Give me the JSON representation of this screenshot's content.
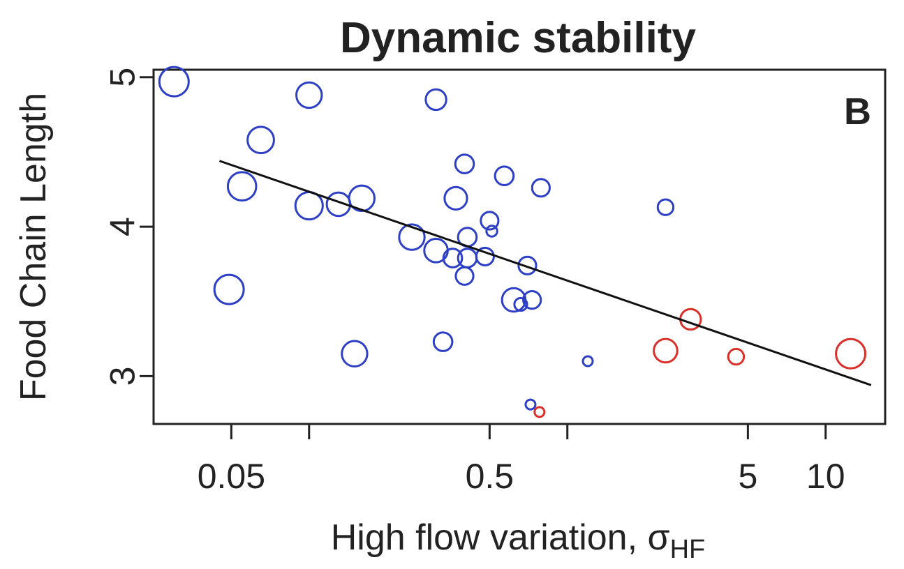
{
  "chart_data": {
    "type": "scatter",
    "title": "Dynamic stability",
    "panel_label": "B",
    "xlabel": "High flow variation, σ",
    "xlabel_subscript": "HF",
    "ylabel": "Food Chain Length",
    "x_scale": "log",
    "xlim": [
      0.025,
      17
    ],
    "ylim": [
      2.68,
      5.05
    ],
    "x_ticks": [
      0.05,
      0.1,
      0.5,
      1,
      5,
      10
    ],
    "x_tick_labels": [
      "0.05",
      "",
      "0.5",
      "",
      "5",
      "10"
    ],
    "y_ticks": [
      3,
      4,
      5
    ],
    "y_tick_labels": [
      "3",
      "4",
      "5"
    ],
    "grid": false,
    "legend": "none",
    "colors": {
      "blue": "#2d3fc4",
      "red": "#d9302a",
      "line": "#111111",
      "axis": "#222222"
    },
    "fit_line": {
      "x": [
        0.045,
        15
      ],
      "y": [
        4.44,
        2.94
      ]
    },
    "points": [
      {
        "x": 0.03,
        "y": 4.97,
        "size": 3,
        "group": "blue"
      },
      {
        "x": 0.055,
        "y": 4.27,
        "size": 2.9,
        "group": "blue"
      },
      {
        "x": 0.065,
        "y": 4.58,
        "size": 2.7,
        "group": "blue"
      },
      {
        "x": 0.049,
        "y": 3.58,
        "size": 3,
        "group": "blue"
      },
      {
        "x": 0.1,
        "y": 4.88,
        "size": 2.6,
        "group": "blue"
      },
      {
        "x": 0.1,
        "y": 4.14,
        "size": 2.8,
        "group": "blue"
      },
      {
        "x": 0.13,
        "y": 4.15,
        "size": 2.4,
        "group": "blue"
      },
      {
        "x": 0.16,
        "y": 4.19,
        "size": 2.6,
        "group": "blue"
      },
      {
        "x": 0.15,
        "y": 3.15,
        "size": 2.6,
        "group": "blue"
      },
      {
        "x": 0.25,
        "y": 3.93,
        "size": 2.6,
        "group": "blue"
      },
      {
        "x": 0.31,
        "y": 4.85,
        "size": 2.1,
        "group": "blue"
      },
      {
        "x": 0.31,
        "y": 3.84,
        "size": 2.4,
        "group": "blue"
      },
      {
        "x": 0.33,
        "y": 3.23,
        "size": 1.9,
        "group": "blue"
      },
      {
        "x": 0.36,
        "y": 3.79,
        "size": 1.9,
        "group": "blue"
      },
      {
        "x": 0.37,
        "y": 4.19,
        "size": 2.3,
        "group": "blue"
      },
      {
        "x": 0.4,
        "y": 4.42,
        "size": 1.9,
        "group": "blue"
      },
      {
        "x": 0.41,
        "y": 3.93,
        "size": 1.9,
        "group": "blue"
      },
      {
        "x": 0.41,
        "y": 3.79,
        "size": 1.9,
        "group": "blue"
      },
      {
        "x": 0.4,
        "y": 3.67,
        "size": 1.8,
        "group": "blue"
      },
      {
        "x": 0.48,
        "y": 3.8,
        "size": 1.8,
        "group": "blue"
      },
      {
        "x": 0.5,
        "y": 4.04,
        "size": 1.8,
        "group": "blue"
      },
      {
        "x": 0.51,
        "y": 3.97,
        "size": 1.1,
        "group": "blue"
      },
      {
        "x": 0.57,
        "y": 4.34,
        "size": 1.9,
        "group": "blue"
      },
      {
        "x": 0.62,
        "y": 3.51,
        "size": 2.4,
        "group": "blue"
      },
      {
        "x": 0.66,
        "y": 3.48,
        "size": 1.3,
        "group": "blue"
      },
      {
        "x": 0.7,
        "y": 3.74,
        "size": 1.8,
        "group": "blue"
      },
      {
        "x": 0.73,
        "y": 3.51,
        "size": 1.8,
        "group": "blue"
      },
      {
        "x": 0.79,
        "y": 4.26,
        "size": 1.8,
        "group": "blue"
      },
      {
        "x": 0.72,
        "y": 2.81,
        "size": 1,
        "group": "blue"
      },
      {
        "x": 1.2,
        "y": 3.1,
        "size": 1,
        "group": "blue"
      },
      {
        "x": 2.4,
        "y": 4.13,
        "size": 1.6,
        "group": "blue"
      },
      {
        "x": 2.4,
        "y": 3.17,
        "size": 2.4,
        "group": "red"
      },
      {
        "x": 3.0,
        "y": 3.38,
        "size": 2.1,
        "group": "red"
      },
      {
        "x": 4.5,
        "y": 3.13,
        "size": 1.6,
        "group": "red"
      },
      {
        "x": 12.5,
        "y": 3.15,
        "size": 3,
        "group": "red"
      },
      {
        "x": 0.78,
        "y": 2.76,
        "size": 1,
        "group": "red"
      }
    ]
  }
}
